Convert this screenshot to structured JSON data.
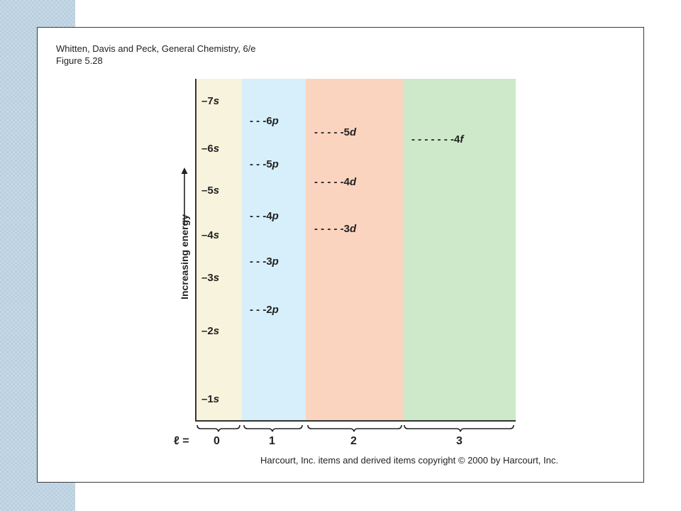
{
  "caption": {
    "line1": "Whitten, Davis and Peck, General Chemistry, 6/e",
    "line2": "Figure 5.28"
  },
  "axis": {
    "ylabel": "Increasing energy",
    "l_label": "ℓ ="
  },
  "columns": [
    {
      "l_value": "0",
      "color": "#f7f3dc"
    },
    {
      "l_value": "1",
      "color": "#d6effb"
    },
    {
      "l_value": "2",
      "color": "#fbd4bf"
    },
    {
      "l_value": "3",
      "color": "#cde9ca"
    }
  ],
  "levels": {
    "s": [
      {
        "dash": "–",
        "n": "7",
        "sub": "s"
      },
      {
        "dash": "–",
        "n": "6",
        "sub": "s"
      },
      {
        "dash": "–",
        "n": "5",
        "sub": "s"
      },
      {
        "dash": "–",
        "n": "4",
        "sub": "s"
      },
      {
        "dash": "–",
        "n": "3",
        "sub": "s"
      },
      {
        "dash": "–",
        "n": "2",
        "sub": "s"
      },
      {
        "dash": "–",
        "n": "1",
        "sub": "s"
      }
    ],
    "p": [
      {
        "dash": "- - -",
        "n": "6",
        "sub": "p"
      },
      {
        "dash": "- - -",
        "n": "5",
        "sub": "p"
      },
      {
        "dash": "- - -",
        "n": "4",
        "sub": "p"
      },
      {
        "dash": "- - -",
        "n": "3",
        "sub": "p"
      },
      {
        "dash": "- - -",
        "n": "2",
        "sub": "p"
      }
    ],
    "d": [
      {
        "dash": "- - - - -",
        "n": "5",
        "sub": "d"
      },
      {
        "dash": "- - - - -",
        "n": "4",
        "sub": "d"
      },
      {
        "dash": "- - - - -",
        "n": "3",
        "sub": "d"
      }
    ],
    "f": [
      {
        "dash": "- - - - - - -",
        "n": "4",
        "sub": "f"
      }
    ]
  },
  "copyright": "Harcourt, Inc. items and derived items copyright © 2000 by Harcourt, Inc."
}
